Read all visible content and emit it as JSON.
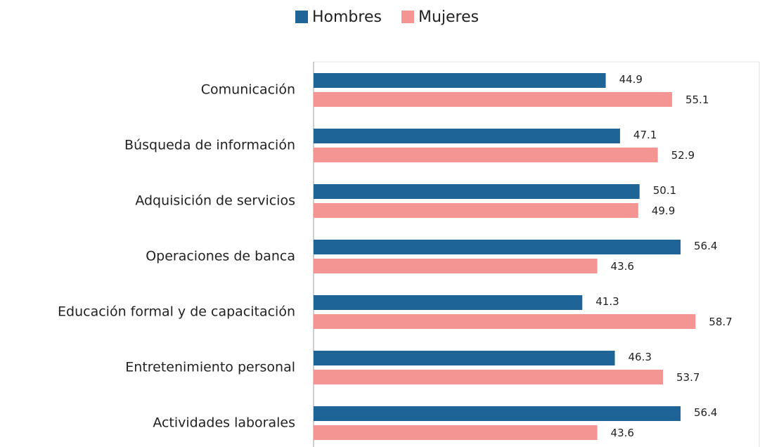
{
  "chart_data": {
    "type": "hbar",
    "categories": [
      "Comunicación",
      "Búsqueda de información",
      "Adquisición de servicios",
      "Operaciones de banca",
      "Educación formal y de capacitación",
      "Entretenimiento personal",
      "Actividades laborales"
    ],
    "series": [
      {
        "name": "Hombres",
        "color": "#1f6496",
        "values": [
          44.9,
          47.1,
          50.1,
          56.4,
          41.3,
          46.3,
          56.4
        ]
      },
      {
        "name": "Mujeres",
        "color": "#f59593",
        "values": [
          55.1,
          52.9,
          49.9,
          43.6,
          58.7,
          53.7,
          43.6
        ]
      }
    ],
    "xlim": [
      0,
      68.5
    ],
    "legend": "top"
  }
}
